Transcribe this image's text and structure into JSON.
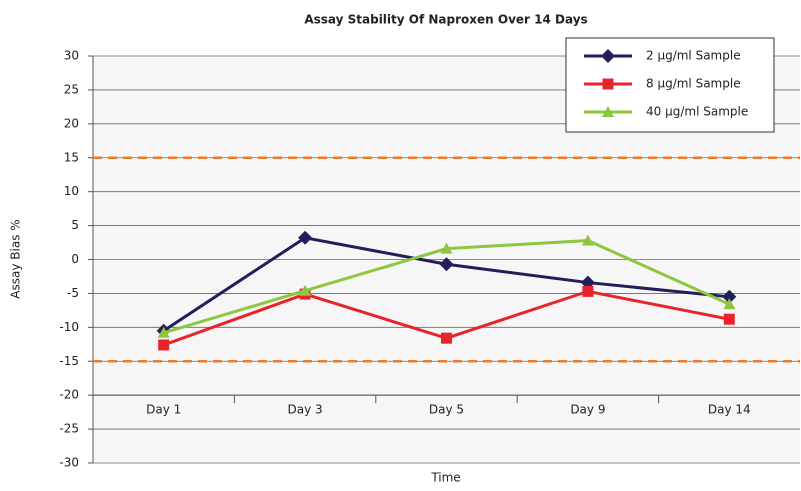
{
  "chart_data": {
    "type": "line",
    "title": "Assay Stability Of Naproxen Over 14 Days",
    "xlabel": "Time",
    "ylabel": "Assay Bias %",
    "categories": [
      "Day 1",
      "Day 3",
      "Day 5",
      "Day 9",
      "Day 14"
    ],
    "series": [
      {
        "name": "2 µg/ml Sample",
        "color": "#221e5c",
        "marker": "diamond",
        "values": [
          -10.5,
          3.2,
          -0.7,
          -3.4,
          -5.5
        ]
      },
      {
        "name": "8 µg/ml Sample",
        "color": "#e8242b",
        "marker": "square",
        "values": [
          -12.6,
          -5.1,
          -11.6,
          -4.7,
          -8.8
        ]
      },
      {
        "name": "40 µg/ml Sample",
        "color": "#8dc63f",
        "marker": "triangle",
        "values": [
          -10.8,
          -4.6,
          1.6,
          2.8,
          -6.6
        ]
      }
    ],
    "ylim": [
      -30,
      30
    ],
    "yticks": [
      -30,
      -25,
      -20,
      -15,
      -10,
      -5,
      0,
      5,
      10,
      15,
      20,
      25,
      30
    ],
    "grid": true,
    "legend": "top-right",
    "category_axis_at": -20,
    "reference_lines": [
      15,
      -15
    ],
    "reference_color": "#f07a2a"
  }
}
